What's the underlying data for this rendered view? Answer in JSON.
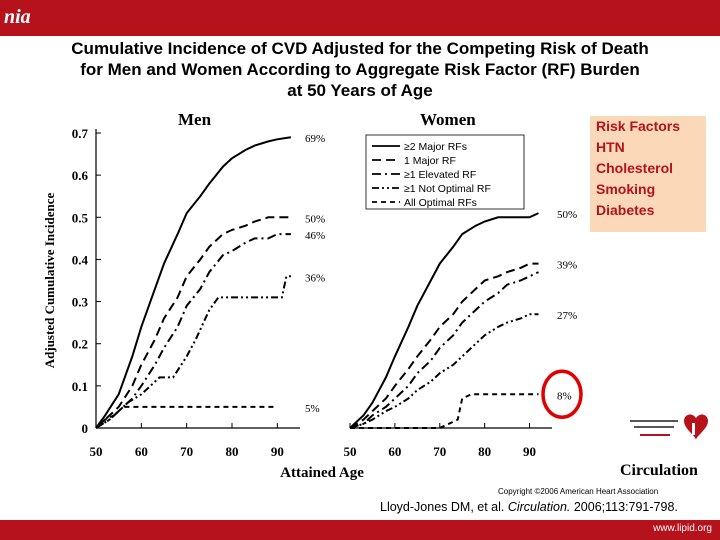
{
  "header": {
    "logo_text": "nia"
  },
  "title_lines": [
    "Cumulative Incidence of CVD Adjusted for the Competing Risk of Death",
    "for Men and Women According to Aggregate Risk Factor (RF) Burden",
    "at 50 Years of Age"
  ],
  "risk_factors": {
    "title": "Risk Factors",
    "items": [
      "HTN",
      "Cholesterol",
      "Smoking",
      "Diabetes"
    ]
  },
  "footer": {
    "journal": "Circulation",
    "copyright": "Copyright ©2006 American Heart Association",
    "citation_prefix": "Lloyd-Jones DM, et al. ",
    "citation_journal": "Circulation.",
    "citation_suffix": " 2006;113:791-798.",
    "site": "www.lipid.org"
  },
  "colors": {
    "brand_red": "#b5121b",
    "rf_box_bg": "#fbd9b8"
  },
  "chart_data": {
    "type": "line",
    "ylabel": "Adjusted Cumulative Incidence",
    "xlabel": "Attained Age",
    "ylim": [
      0,
      0.7
    ],
    "xlim": [
      50,
      95
    ],
    "y_ticks": [
      0,
      0.1,
      0.2,
      0.3,
      0.4,
      0.5,
      0.6,
      0.7
    ],
    "y_tick_labels": [
      "0",
      "0.1",
      "0.2",
      "0.3",
      "0.4",
      "0.5",
      "0.6",
      "0.7"
    ],
    "x_ticks": [
      50,
      60,
      70,
      80,
      90
    ],
    "legend_placement": "top-right of women panel",
    "panels": [
      {
        "title": "Men",
        "series": [
          {
            "name": "≥2 Major RFs",
            "end_label": "69%",
            "points": [
              [
                50,
                0
              ],
              [
                52,
                0.03
              ],
              [
                55,
                0.08
              ],
              [
                58,
                0.17
              ],
              [
                60,
                0.24
              ],
              [
                63,
                0.33
              ],
              [
                65,
                0.39
              ],
              [
                68,
                0.46
              ],
              [
                70,
                0.51
              ],
              [
                73,
                0.55
              ],
              [
                75,
                0.58
              ],
              [
                78,
                0.62
              ],
              [
                80,
                0.64
              ],
              [
                83,
                0.66
              ],
              [
                85,
                0.67
              ],
              [
                88,
                0.68
              ],
              [
                90,
                0.685
              ],
              [
                93,
                0.69
              ]
            ]
          },
          {
            "name": "1 Major RF",
            "end_label": "50%",
            "points": [
              [
                50,
                0
              ],
              [
                53,
                0.03
              ],
              [
                55,
                0.05
              ],
              [
                58,
                0.1
              ],
              [
                60,
                0.15
              ],
              [
                63,
                0.21
              ],
              [
                65,
                0.26
              ],
              [
                68,
                0.31
              ],
              [
                70,
                0.36
              ],
              [
                73,
                0.4
              ],
              [
                75,
                0.43
              ],
              [
                78,
                0.46
              ],
              [
                80,
                0.47
              ],
              [
                83,
                0.48
              ],
              [
                85,
                0.49
              ],
              [
                88,
                0.5
              ],
              [
                90,
                0.5
              ],
              [
                93,
                0.5
              ]
            ]
          },
          {
            "name": "≥1 Elevated RF",
            "end_label": "46%",
            "points": [
              [
                50,
                0
              ],
              [
                53,
                0.02
              ],
              [
                55,
                0.04
              ],
              [
                58,
                0.07
              ],
              [
                60,
                0.1
              ],
              [
                63,
                0.15
              ],
              [
                65,
                0.19
              ],
              [
                68,
                0.24
              ],
              [
                70,
                0.29
              ],
              [
                73,
                0.33
              ],
              [
                75,
                0.37
              ],
              [
                78,
                0.41
              ],
              [
                80,
                0.42
              ],
              [
                83,
                0.44
              ],
              [
                85,
                0.45
              ],
              [
                88,
                0.45
              ],
              [
                90,
                0.46
              ],
              [
                93,
                0.46
              ]
            ]
          },
          {
            "name": "≥1 Not Optimal RF",
            "end_label": "36%",
            "points": [
              [
                50,
                0
              ],
              [
                53,
                0.02
              ],
              [
                55,
                0.04
              ],
              [
                57,
                0.06
              ],
              [
                60,
                0.08
              ],
              [
                62,
                0.1
              ],
              [
                64,
                0.12
              ],
              [
                67,
                0.12
              ],
              [
                70,
                0.17
              ],
              [
                72,
                0.21
              ],
              [
                75,
                0.28
              ],
              [
                77,
                0.31
              ],
              [
                80,
                0.31
              ],
              [
                83,
                0.31
              ],
              [
                85,
                0.31
              ],
              [
                87,
                0.31
              ],
              [
                89,
                0.31
              ],
              [
                91,
                0.31
              ],
              [
                92,
                0.36
              ],
              [
                93,
                0.36
              ]
            ]
          },
          {
            "name": "All Optimal RFs",
            "end_label": "5%",
            "points": [
              [
                50,
                0
              ],
              [
                52,
                0.02
              ],
              [
                54,
                0.03
              ],
              [
                56,
                0.05
              ],
              [
                60,
                0.05
              ],
              [
                70,
                0.05
              ],
              [
                80,
                0.05
              ],
              [
                90,
                0.05
              ]
            ]
          }
        ]
      },
      {
        "title": "Women",
        "series": [
          {
            "name": "≥2 Major RFs",
            "end_label": "50%",
            "points": [
              [
                50,
                0
              ],
              [
                53,
                0.03
              ],
              [
                55,
                0.06
              ],
              [
                58,
                0.12
              ],
              [
                60,
                0.17
              ],
              [
                63,
                0.24
              ],
              [
                65,
                0.29
              ],
              [
                68,
                0.35
              ],
              [
                70,
                0.39
              ],
              [
                73,
                0.43
              ],
              [
                75,
                0.46
              ],
              [
                78,
                0.48
              ],
              [
                80,
                0.49
              ],
              [
                83,
                0.5
              ],
              [
                85,
                0.5
              ],
              [
                88,
                0.5
              ],
              [
                90,
                0.5
              ],
              [
                92,
                0.51
              ]
            ]
          },
          {
            "name": "1 Major RF",
            "end_label": "39%",
            "points": [
              [
                50,
                0
              ],
              [
                53,
                0.02
              ],
              [
                55,
                0.04
              ],
              [
                58,
                0.07
              ],
              [
                60,
                0.1
              ],
              [
                63,
                0.14
              ],
              [
                65,
                0.17
              ],
              [
                68,
                0.21
              ],
              [
                70,
                0.24
              ],
              [
                73,
                0.27
              ],
              [
                75,
                0.3
              ],
              [
                78,
                0.33
              ],
              [
                80,
                0.35
              ],
              [
                83,
                0.36
              ],
              [
                85,
                0.37
              ],
              [
                88,
                0.38
              ],
              [
                90,
                0.39
              ],
              [
                92,
                0.39
              ]
            ]
          },
          {
            "name": "≥1 Elevated RF",
            "end_label": "",
            "points": [
              [
                50,
                0
              ],
              [
                53,
                0.01
              ],
              [
                55,
                0.03
              ],
              [
                58,
                0.05
              ],
              [
                60,
                0.07
              ],
              [
                63,
                0.1
              ],
              [
                65,
                0.13
              ],
              [
                68,
                0.16
              ],
              [
                70,
                0.19
              ],
              [
                73,
                0.22
              ],
              [
                75,
                0.25
              ],
              [
                78,
                0.28
              ],
              [
                80,
                0.3
              ],
              [
                83,
                0.32
              ],
              [
                85,
                0.34
              ],
              [
                88,
                0.35
              ],
              [
                90,
                0.36
              ],
              [
                92,
                0.37
              ]
            ]
          },
          {
            "name": "≥1 Not Optimal RF",
            "end_label": "27%",
            "points": [
              [
                50,
                0
              ],
              [
                53,
                0.01
              ],
              [
                55,
                0.02
              ],
              [
                58,
                0.04
              ],
              [
                60,
                0.05
              ],
              [
                63,
                0.07
              ],
              [
                65,
                0.09
              ],
              [
                68,
                0.11
              ],
              [
                70,
                0.13
              ],
              [
                73,
                0.15
              ],
              [
                75,
                0.17
              ],
              [
                78,
                0.2
              ],
              [
                80,
                0.22
              ],
              [
                83,
                0.24
              ],
              [
                85,
                0.25
              ],
              [
                88,
                0.26
              ],
              [
                90,
                0.27
              ],
              [
                92,
                0.27
              ]
            ]
          },
          {
            "name": "All Optimal RFs",
            "end_label": "8%",
            "points": [
              [
                50,
                0
              ],
              [
                55,
                0
              ],
              [
                60,
                0
              ],
              [
                65,
                0
              ],
              [
                70,
                0
              ],
              [
                72,
                0.01
              ],
              [
                74,
                0.02
              ],
              [
                75,
                0.07
              ],
              [
                77,
                0.08
              ],
              [
                80,
                0.08
              ],
              [
                85,
                0.08
              ],
              [
                90,
                0.08
              ],
              [
                92,
                0.08
              ]
            ]
          }
        ]
      }
    ]
  }
}
